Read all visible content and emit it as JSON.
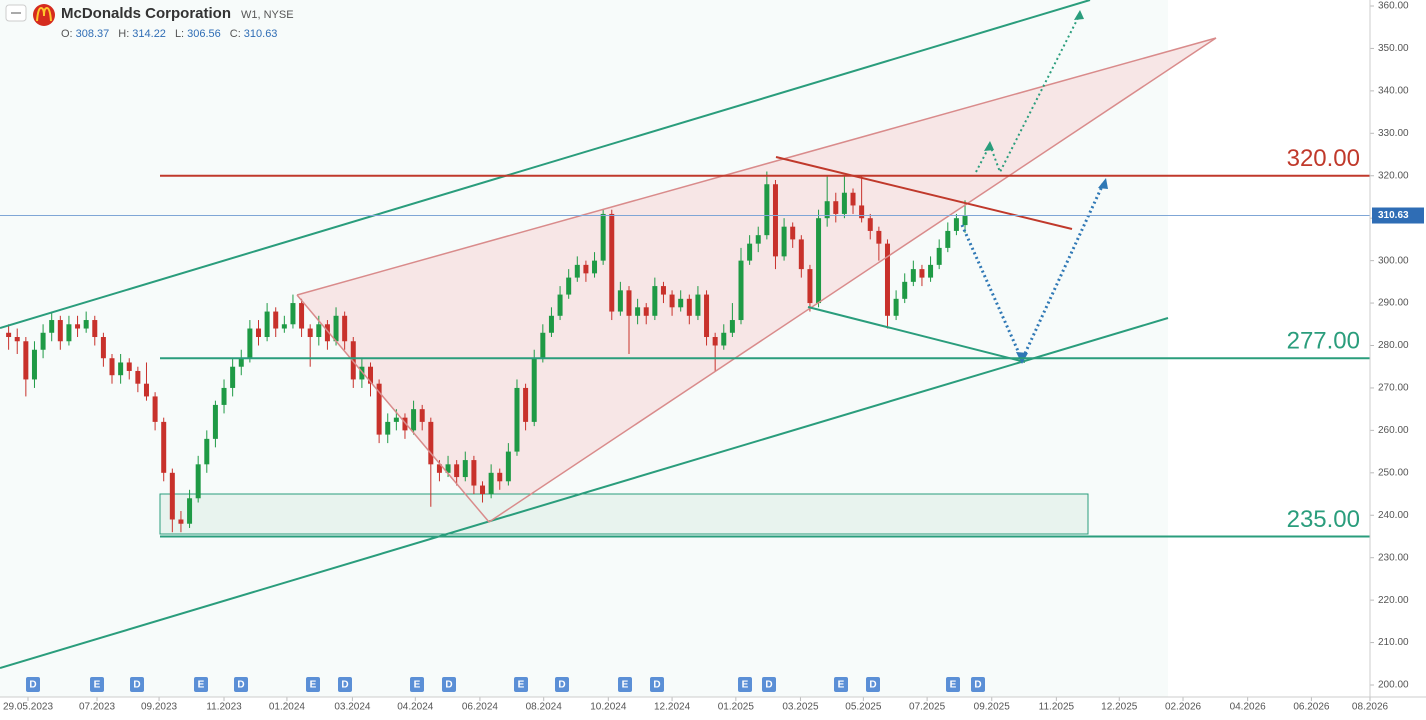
{
  "chart_data": {
    "type": "candlestick",
    "title": "McDonalds Corporation",
    "subtitle": "W1, NYSE",
    "ohlc_labels": [
      "O:",
      "H:",
      "L:",
      "C:"
    ],
    "up_color": "#1e9a45",
    "down_color": "#c8312b",
    "candles": [
      [
        283,
        285,
        279,
        282
      ],
      [
        282,
        284,
        278,
        281
      ],
      [
        281,
        282,
        268,
        272
      ],
      [
        272,
        281,
        270,
        279
      ],
      [
        279,
        285,
        277,
        283
      ],
      [
        283,
        288,
        281,
        286
      ],
      [
        286,
        287,
        279,
        281
      ],
      [
        281,
        287,
        280,
        285
      ],
      [
        285,
        287,
        282,
        284
      ],
      [
        284,
        288,
        283,
        286
      ],
      [
        286,
        287,
        280,
        282
      ],
      [
        282,
        283,
        275,
        277
      ],
      [
        277,
        278,
        271,
        273
      ],
      [
        273,
        278,
        271,
        276
      ],
      [
        276,
        277,
        272,
        274
      ],
      [
        274,
        275,
        269,
        271
      ],
      [
        271,
        276,
        267,
        268
      ],
      [
        268,
        269,
        260,
        262
      ],
      [
        262,
        263,
        248,
        250
      ],
      [
        250,
        251,
        236,
        239
      ],
      [
        239,
        241,
        236,
        238
      ],
      [
        238,
        246,
        237,
        244
      ],
      [
        244,
        254,
        243,
        252
      ],
      [
        252,
        260,
        250,
        258
      ],
      [
        258,
        267,
        256,
        266
      ],
      [
        266,
        272,
        264,
        270
      ],
      [
        270,
        277,
        268,
        275
      ],
      [
        275,
        279,
        273,
        277
      ],
      [
        277,
        286,
        276,
        284
      ],
      [
        284,
        286,
        280,
        282
      ],
      [
        282,
        290,
        281,
        288
      ],
      [
        288,
        289,
        282,
        284
      ],
      [
        284,
        287,
        283,
        285
      ],
      [
        285,
        292,
        284,
        290
      ],
      [
        290,
        291,
        282,
        284
      ],
      [
        284,
        285,
        275,
        282
      ],
      [
        282,
        287,
        280,
        285
      ],
      [
        285,
        286,
        279,
        281
      ],
      [
        281,
        289,
        280,
        287
      ],
      [
        287,
        288,
        279,
        281
      ],
      [
        281,
        282,
        270,
        272
      ],
      [
        272,
        277,
        270,
        275
      ],
      [
        275,
        276,
        268,
        271
      ],
      [
        271,
        272,
        257,
        259
      ],
      [
        259,
        264,
        257,
        262
      ],
      [
        262,
        265,
        260,
        263
      ],
      [
        263,
        264,
        258,
        260
      ],
      [
        260,
        267,
        259,
        265
      ],
      [
        265,
        266,
        260,
        262
      ],
      [
        262,
        263,
        242,
        252
      ],
      [
        252,
        253,
        248,
        250
      ],
      [
        250,
        254,
        249,
        252
      ],
      [
        252,
        253,
        247,
        249
      ],
      [
        249,
        255,
        248,
        253
      ],
      [
        253,
        254,
        245,
        247
      ],
      [
        247,
        248,
        243,
        245
      ],
      [
        245,
        252,
        244,
        250
      ],
      [
        250,
        251,
        246,
        248
      ],
      [
        248,
        257,
        247,
        255
      ],
      [
        255,
        272,
        254,
        270
      ],
      [
        270,
        271,
        260,
        262
      ],
      [
        262,
        279,
        261,
        277
      ],
      [
        277,
        285,
        276,
        283
      ],
      [
        283,
        289,
        282,
        287
      ],
      [
        287,
        294,
        286,
        292
      ],
      [
        292,
        298,
        291,
        296
      ],
      [
        296,
        301,
        295,
        299
      ],
      [
        299,
        300,
        295,
        297
      ],
      [
        297,
        302,
        296,
        300
      ],
      [
        300,
        312,
        299,
        311
      ],
      [
        311,
        312,
        286,
        288
      ],
      [
        288,
        295,
        287,
        293
      ],
      [
        293,
        294,
        278,
        287
      ],
      [
        287,
        291,
        285,
        289
      ],
      [
        289,
        290,
        285,
        287
      ],
      [
        287,
        296,
        286,
        294
      ],
      [
        294,
        295,
        290,
        292
      ],
      [
        292,
        293,
        287,
        289
      ],
      [
        289,
        293,
        288,
        291
      ],
      [
        291,
        292,
        285,
        287
      ],
      [
        287,
        294,
        286,
        292
      ],
      [
        292,
        293,
        280,
        282
      ],
      [
        282,
        283,
        274,
        280
      ],
      [
        280,
        285,
        279,
        283
      ],
      [
        283,
        290,
        282,
        286
      ],
      [
        286,
        303,
        285,
        300
      ],
      [
        300,
        306,
        299,
        304
      ],
      [
        304,
        308,
        302,
        306
      ],
      [
        306,
        321,
        305,
        318
      ],
      [
        318,
        319,
        298,
        301
      ],
      [
        301,
        310,
        300,
        308
      ],
      [
        308,
        309,
        303,
        305
      ],
      [
        305,
        306,
        296,
        298
      ],
      [
        298,
        299,
        288,
        290
      ],
      [
        290,
        312,
        289,
        310
      ],
      [
        310,
        320,
        308,
        314
      ],
      [
        314,
        316,
        309,
        311
      ],
      [
        311,
        320,
        310,
        316
      ],
      [
        316,
        317,
        311,
        313
      ],
      [
        313,
        320,
        309,
        310
      ],
      [
        310,
        311,
        305,
        307
      ],
      [
        307,
        308,
        300,
        304
      ],
      [
        304,
        305,
        284,
        287
      ],
      [
        287,
        293,
        286,
        291
      ],
      [
        291,
        297,
        290,
        295
      ],
      [
        295,
        300,
        294,
        298
      ],
      [
        298,
        299,
        294,
        296
      ],
      [
        296,
        301,
        295,
        299
      ],
      [
        299,
        305,
        298,
        303
      ],
      [
        303,
        309,
        302,
        307
      ],
      [
        307,
        311,
        306,
        310
      ],
      [
        308.37,
        314.22,
        306.56,
        310.63
      ]
    ],
    "xlim": [
      0,
      159
    ],
    "xticks": [
      {
        "value": 3.25,
        "label": "29.05.2023"
      },
      {
        "value": 11.26,
        "label": "07.2023"
      },
      {
        "value": 18.46,
        "label": "09.2023"
      },
      {
        "value": 26.0,
        "label": "11.2023"
      },
      {
        "value": 33.3,
        "label": "01.2024"
      },
      {
        "value": 40.9,
        "label": "03.2024"
      },
      {
        "value": 48.2,
        "label": "04.2024"
      },
      {
        "value": 55.7,
        "label": "06.2024"
      },
      {
        "value": 63.1,
        "label": "08.2024"
      },
      {
        "value": 70.6,
        "label": "10.2024"
      },
      {
        "value": 78.0,
        "label": "12.2024"
      },
      {
        "value": 85.4,
        "label": "01.2025"
      },
      {
        "value": 92.9,
        "label": "03.2025"
      },
      {
        "value": 100.2,
        "label": "05.2025"
      },
      {
        "value": 107.6,
        "label": "07.2025"
      },
      {
        "value": 115.1,
        "label": "09.2025"
      },
      {
        "value": 122.6,
        "label": "11.2025"
      },
      {
        "value": 129.9,
        "label": "12.2025"
      },
      {
        "value": 137.3,
        "label": "02.2026"
      },
      {
        "value": 144.8,
        "label": "04.2026"
      },
      {
        "value": 152.2,
        "label": "06.2026"
      },
      {
        "value": 159.0,
        "label": "08.2026"
      }
    ],
    "ylim": [
      200,
      360
    ],
    "yticks": [
      {
        "value": 200,
        "label": "200.00"
      },
      {
        "value": 210,
        "label": "210.00"
      },
      {
        "value": 220,
        "label": "220.00"
      },
      {
        "value": 230,
        "label": "230.00"
      },
      {
        "value": 240,
        "label": "240.00"
      },
      {
        "value": 250,
        "label": "250.00"
      },
      {
        "value": 260,
        "label": "260.00"
      },
      {
        "value": 270,
        "label": "270.00"
      },
      {
        "value": 280,
        "label": "280.00"
      },
      {
        "value": 290,
        "label": "290.00"
      },
      {
        "value": 300,
        "label": "300.00"
      },
      {
        "value": 310,
        "label": "310.00"
      },
      {
        "value": 320,
        "label": "320.00"
      },
      {
        "value": 330,
        "label": "330.00"
      },
      {
        "value": 340,
        "label": "340.00"
      },
      {
        "value": 350,
        "label": "350.00"
      },
      {
        "value": 360,
        "label": "360.00"
      }
    ],
    "levels": [
      {
        "value": 320,
        "label": "320.00",
        "color": "#c0392b"
      },
      {
        "value": 277,
        "label": "277.00",
        "color": "#2a9d7c"
      },
      {
        "value": 235,
        "label": "235.00",
        "color": "#2a9d7c"
      }
    ],
    "events": [
      "D",
      "E",
      "D",
      "E",
      "D",
      "E",
      "D",
      "E",
      "D",
      "E",
      "D",
      "E",
      "D",
      "E",
      "D",
      "E",
      "D",
      "E",
      "D"
    ]
  }
}
